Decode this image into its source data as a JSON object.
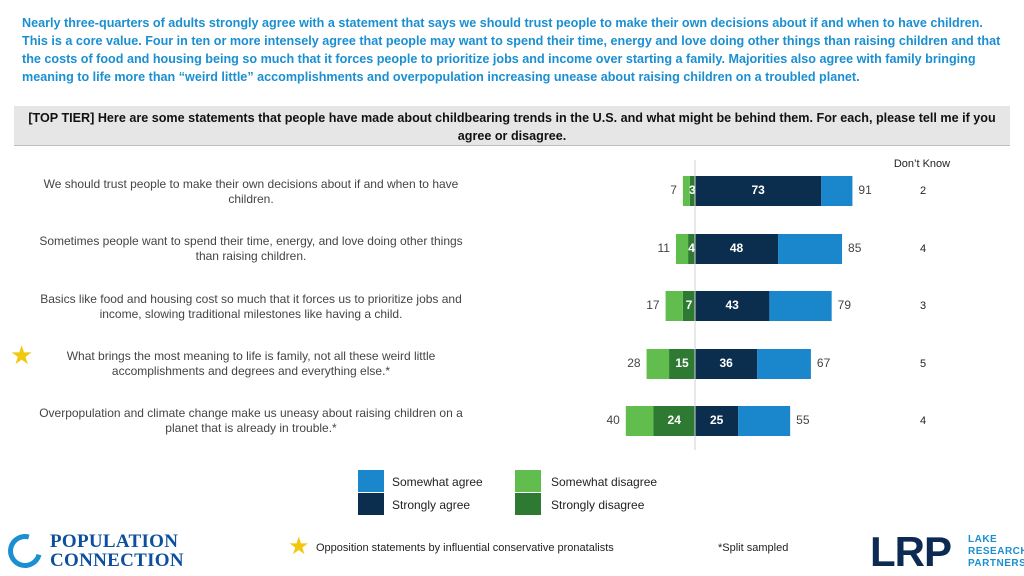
{
  "headline": "Nearly three-quarters of adults strongly agree with a statement that says we should trust people to make their own decisions about if and when to have children. This is a core value. Four in ten or more intensely agree that people may want to spend their time, energy and love doing other things than raising children and that the costs of food and housing being so much that it forces people to prioritize jobs and income over starting a family. Majorities also agree with family bringing meaning to life more than “weird little” accomplishments and overpopulation increasing unease about raising children on a troubled planet.",
  "question": "[TOP TIER] Here are some statements that people have made about childbearing trends in the U.S. and what might be behind them. For each, please tell me if you agree or disagree.",
  "chart_data": {
    "type": "bar",
    "subtype": "diverging-stacked-horizontal",
    "dont_know_header": "Don’t Know",
    "categories": [
      "We should trust people to make their own decisions about if and when to have children.",
      "Sometimes people want to spend their time, energy, and love doing other things than raising children.",
      "Basics like food and housing cost so much that it forces us to prioritize jobs and income, slowing traditional milestones like having a child.",
      "What brings the most meaning to life is family, not all these weird little accomplishments and degrees and everything else.*",
      "Overpopulation and climate change make us uneasy about raising children on a planet that is already in trouble.*"
    ],
    "starred": [
      false,
      false,
      false,
      true,
      false
    ],
    "strongly_agree": [
      73,
      48,
      43,
      36,
      25
    ],
    "total_agree": [
      91,
      85,
      79,
      67,
      55
    ],
    "strongly_disagree": [
      3,
      4,
      7,
      15,
      24
    ],
    "total_disagree": [
      7,
      11,
      17,
      28,
      40
    ],
    "dont_know": [
      2,
      4,
      3,
      5,
      4
    ],
    "series": [
      {
        "name": "Somewhat agree",
        "color": "#1a86cc"
      },
      {
        "name": "Strongly agree",
        "color": "#0b2e4f"
      },
      {
        "name": "Somewhat disagree",
        "color": "#62bd4f"
      },
      {
        "name": "Strongly disagree",
        "color": "#2e7a32"
      }
    ]
  },
  "legend": {
    "somewhat_agree": "Somewhat agree",
    "strongly_agree": "Strongly agree",
    "somewhat_disagree": "Somewhat disagree",
    "strongly_disagree": "Strongly disagree"
  },
  "footnotes": {
    "star_note": "Opposition statements by influential conservative pronatalists",
    "split_note": "*Split sampled"
  },
  "logos": {
    "population_connection": [
      "POPULATION",
      "CONNECTION"
    ],
    "lrp": "LRP",
    "lrp_sub": [
      "LAKE",
      "RESEARCH",
      "PARTNERS"
    ]
  },
  "colors": {
    "accent": "#1a8fd1",
    "star": "#f2c80f"
  }
}
